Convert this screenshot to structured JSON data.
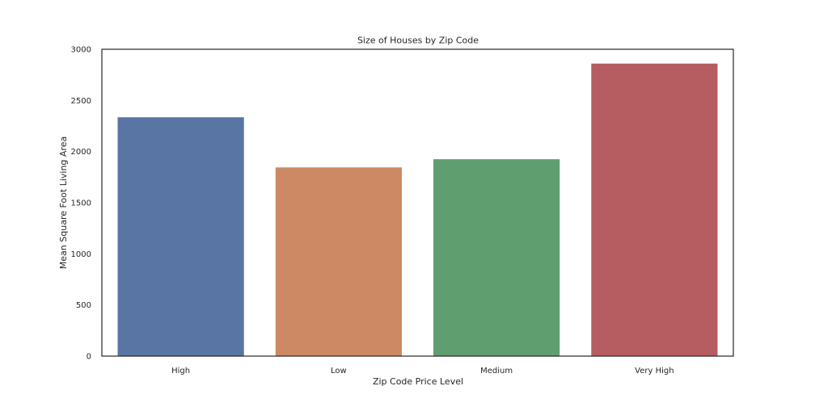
{
  "chart_data": {
    "type": "bar",
    "title": "Size of Houses by Zip Code",
    "xlabel": "Zip Code Price Level",
    "ylabel": "Mean Square Foot Living Area",
    "categories": [
      "High",
      "Low",
      "Medium",
      "Very High"
    ],
    "values": [
      2335,
      1845,
      1925,
      2860
    ],
    "colors": [
      "#5975a4",
      "#cc8963",
      "#5f9e6e",
      "#b55d60"
    ],
    "ylim": [
      0,
      3000
    ],
    "yticks": [
      0,
      500,
      1000,
      1500,
      2000,
      2500,
      3000
    ],
    "grid": false,
    "legend": "none"
  }
}
